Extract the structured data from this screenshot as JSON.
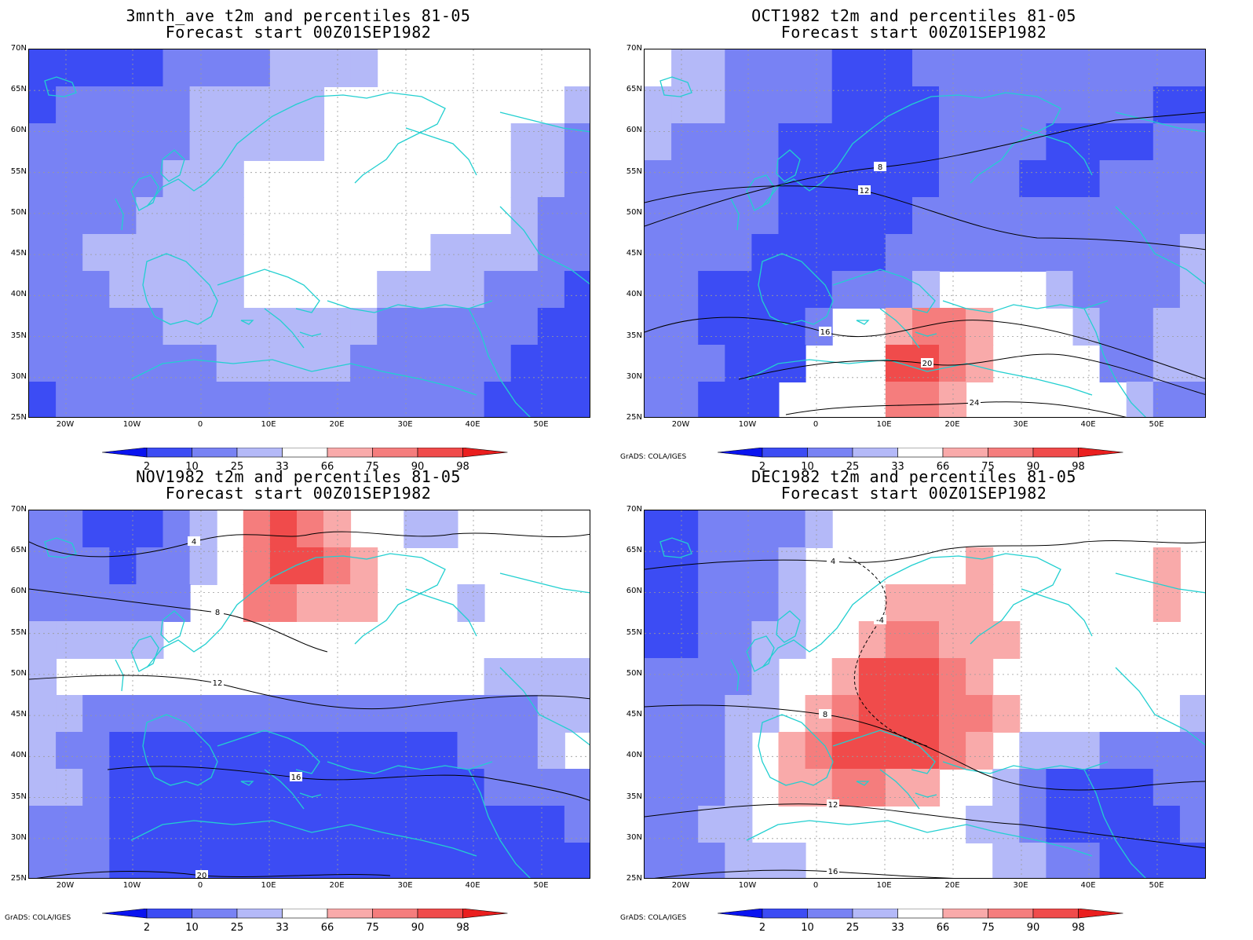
{
  "panels": [
    {
      "title1": "3mnth_ave t2m and percentiles 81-05",
      "title2": "Forecast start 00Z01SEP1982",
      "credit": "",
      "pattern": "ave"
    },
    {
      "title1": "OCT1982 t2m and percentiles 81-05",
      "title2": "Forecast start 00Z01SEP1982",
      "credit": "GrADS: COLA/IGES",
      "pattern": "oct"
    },
    {
      "title1": "NOV1982 t2m and percentiles 81-05",
      "title2": "Forecast start 00Z01SEP1982",
      "credit": "GrADS: COLA/IGES",
      "pattern": "nov"
    },
    {
      "title1": "DEC1982 t2m and percentiles 81-05",
      "title2": "Forecast start 00Z01SEP1982",
      "credit": "GrADS: COLA/IGES",
      "pattern": "dec"
    }
  ],
  "map": {
    "lat_ticks": [
      "70N",
      "65N",
      "60N",
      "55N",
      "50N",
      "45N",
      "40N",
      "35N",
      "30N",
      "25N"
    ],
    "lon_ticks": [
      "20W",
      "10W",
      "0",
      "10E",
      "20E",
      "30E",
      "40E",
      "50E"
    ]
  },
  "colorbar": {
    "labels": [
      "2",
      "10",
      "25",
      "33",
      "66",
      "75",
      "90",
      "98"
    ],
    "colors": [
      "#0a14f0",
      "#3c4cf4",
      "#7882f4",
      "#b4b9f8",
      "#ffffff",
      "#f9aaaa",
      "#f57d7d",
      "#f04b4b",
      "#ea1e1e"
    ]
  },
  "colors": {
    "coast": "#22cfd0",
    "contour": "#000000"
  }
}
